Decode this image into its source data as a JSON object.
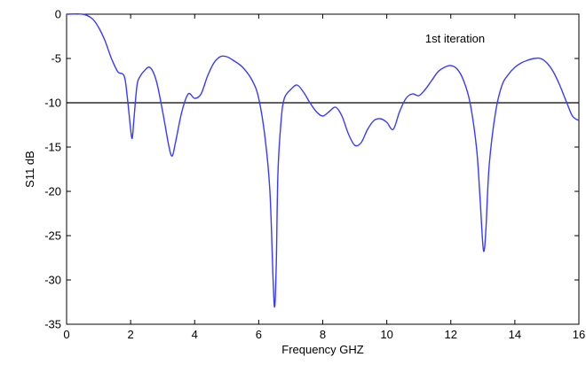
{
  "chart_data": {
    "type": "line",
    "title": "",
    "xlabel": "Frequency GHZ",
    "ylabel": "S11 dB",
    "xlim": [
      0,
      16
    ],
    "ylim": [
      -35,
      0
    ],
    "xticks": [
      0,
      2,
      4,
      6,
      8,
      10,
      12,
      14,
      16
    ],
    "yticks": [
      0,
      -5,
      -10,
      -15,
      -20,
      -25,
      -30,
      -35
    ],
    "grid": false,
    "annotation": "1st iteration",
    "reference_line": {
      "y": -10,
      "color": "#000000"
    },
    "series": [
      {
        "color": "#3a3aff",
        "x": [
          0.0,
          0.5,
          0.8,
          1.0,
          1.2,
          1.4,
          1.6,
          1.8,
          1.9,
          2.0,
          2.05,
          2.1,
          2.2,
          2.3,
          2.4,
          2.6,
          2.8,
          3.0,
          3.2,
          3.3,
          3.4,
          3.6,
          3.8,
          4.0,
          4.2,
          4.4,
          4.6,
          4.8,
          5.0,
          5.2,
          5.5,
          5.8,
          6.0,
          6.2,
          6.35,
          6.45,
          6.5,
          6.55,
          6.6,
          6.7,
          6.8,
          7.0,
          7.2,
          7.4,
          7.6,
          7.8,
          8.0,
          8.2,
          8.4,
          8.6,
          8.8,
          9.0,
          9.2,
          9.4,
          9.6,
          9.8,
          10.0,
          10.2,
          10.4,
          10.6,
          10.8,
          11.0,
          11.2,
          11.4,
          11.6,
          11.8,
          12.0,
          12.2,
          12.4,
          12.6,
          12.8,
          12.9,
          13.0,
          13.05,
          13.1,
          13.2,
          13.4,
          13.6,
          13.8,
          14.0,
          14.2,
          14.4,
          14.6,
          14.8,
          15.0,
          15.2,
          15.4,
          15.6,
          15.8,
          16.0
        ],
        "y": [
          0.0,
          0.0,
          -0.5,
          -1.5,
          -3.0,
          -5.0,
          -6.5,
          -7.0,
          -9.5,
          -13.0,
          -14.0,
          -12.0,
          -8.0,
          -7.0,
          -6.5,
          -6.0,
          -7.5,
          -11.0,
          -15.0,
          -16.0,
          -14.5,
          -11.0,
          -9.0,
          -9.5,
          -9.0,
          -7.0,
          -5.5,
          -4.8,
          -4.8,
          -5.2,
          -6.0,
          -7.5,
          -9.5,
          -14.0,
          -20.0,
          -30.0,
          -33.0,
          -28.0,
          -18.0,
          -12.0,
          -9.5,
          -8.5,
          -8.0,
          -8.8,
          -10.0,
          -11.0,
          -11.5,
          -11.0,
          -10.5,
          -11.5,
          -13.5,
          -14.8,
          -14.5,
          -13.0,
          -12.0,
          -11.8,
          -12.2,
          -13.0,
          -11.0,
          -9.5,
          -9.0,
          -9.2,
          -8.5,
          -7.5,
          -6.5,
          -6.0,
          -5.8,
          -6.2,
          -7.5,
          -10.0,
          -15.0,
          -20.0,
          -26.0,
          -26.5,
          -24.0,
          -17.0,
          -11.0,
          -8.0,
          -6.8,
          -6.0,
          -5.5,
          -5.2,
          -5.0,
          -5.0,
          -5.5,
          -6.5,
          -8.0,
          -9.8,
          -11.5,
          -12.0
        ]
      }
    ]
  }
}
